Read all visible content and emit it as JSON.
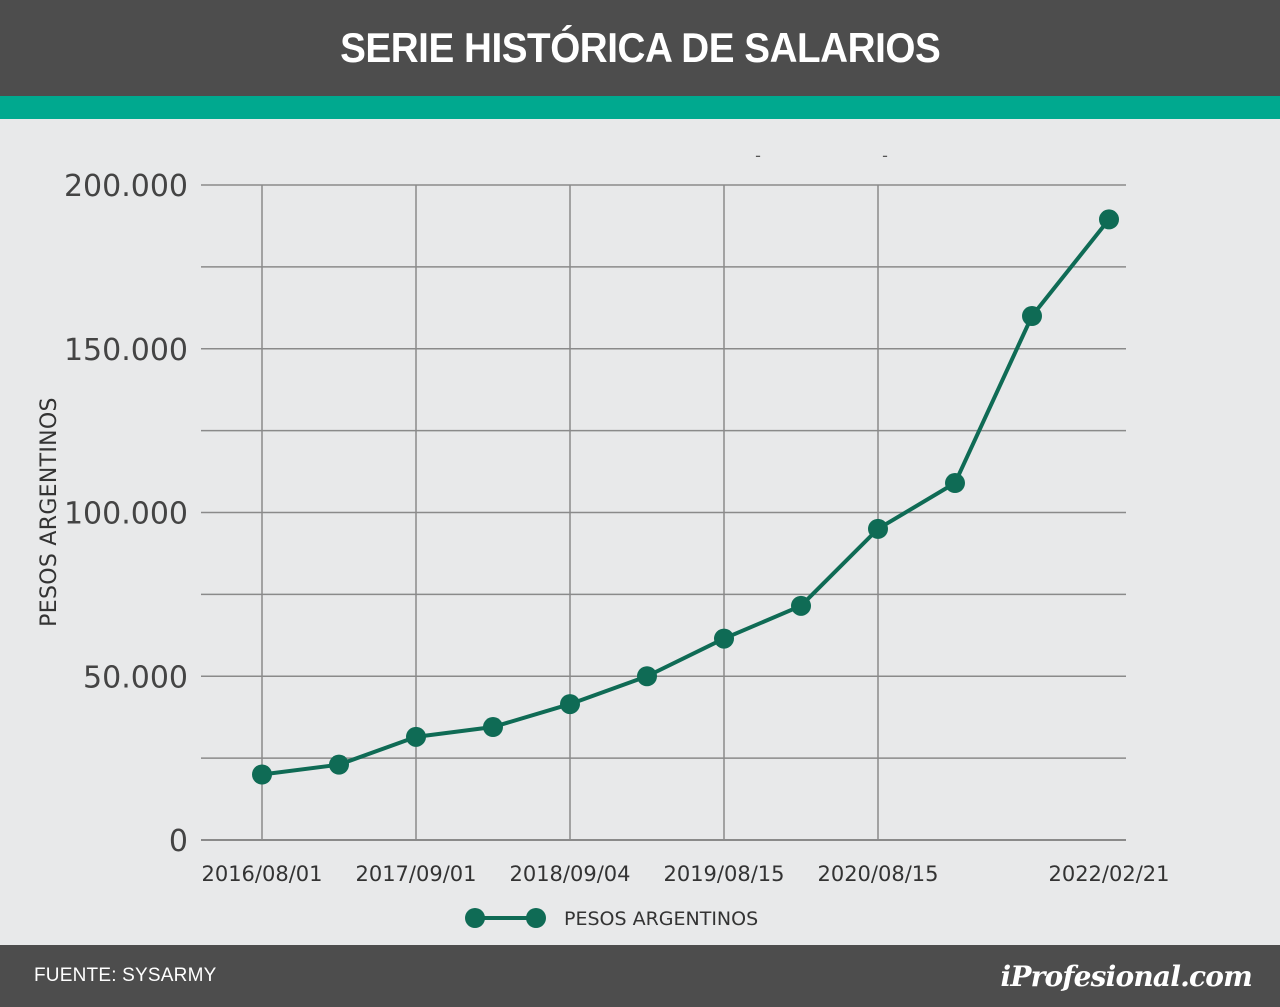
{
  "header": {
    "title": "SERIE HISTÓRICA DE SALARIOS"
  },
  "colors": {
    "header_bg": "#4d4d4d",
    "accent": "#00a98f",
    "background": "#e8e9ea",
    "series": "#0f6b55",
    "grid": "#8a8a8a"
  },
  "footer": {
    "source": "FUENTE: SYSARMY",
    "brand": "iProfesional.com"
  },
  "chart_data": {
    "type": "line",
    "ylabel": "PESOS ARGENTINOS",
    "ylim": [
      0,
      200000
    ],
    "yticks": [
      {
        "value": 0,
        "label": "0"
      },
      {
        "value": 50000,
        "label": "50.000"
      },
      {
        "value": 100000,
        "label": "100.000"
      },
      {
        "value": 150000,
        "label": "150.000"
      },
      {
        "value": 200000,
        "label": "200.000"
      }
    ],
    "xtick_labels": [
      "2016/08/01",
      "",
      "2017/09/01",
      "",
      "2018/09/04",
      "",
      "2019/08/15",
      "",
      "2020/08/15",
      "",
      "",
      "2022/02/21"
    ],
    "grid": true,
    "legend": {
      "position": "bottom-center"
    },
    "series": [
      {
        "name": "PESOS ARGENTINOS",
        "values": [
          20000,
          23000,
          31500,
          34500,
          41500,
          50000,
          61500,
          71500,
          95000,
          109000,
          160000,
          189500
        ]
      }
    ],
    "annotations": [
      "-",
      "-"
    ]
  }
}
